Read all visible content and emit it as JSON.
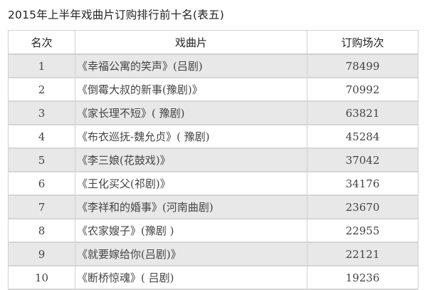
{
  "title": "2015年上半年戏曲片订购排行前十名(表五)",
  "table": {
    "headers": [
      "名次",
      "戏曲片",
      "订购场次"
    ],
    "rows": [
      {
        "rank": "1",
        "name": "《幸福公寓的笑声》(吕剧)",
        "count": "78499"
      },
      {
        "rank": "2",
        "name": "《倒霉大叔的新事(豫剧)》",
        "count": "70992"
      },
      {
        "rank": "3",
        "name": "《家长理不短》( 豫剧)",
        "count": "63821"
      },
      {
        "rank": "4",
        "name": "《布衣巡抚-魏允贞》( 豫剧)",
        "count": "45284"
      },
      {
        "rank": "5",
        "name": "《李三娘(花鼓戏)》",
        "count": "37042"
      },
      {
        "rank": "6",
        "name": "《王化买父(祁剧)》",
        "count": "34176"
      },
      {
        "rank": "7",
        "name": "《李祥和的婚事》(河南曲剧)",
        "count": "23670"
      },
      {
        "rank": "8",
        "name": "《农家嫂子》(豫剧 )",
        "count": "22955"
      },
      {
        "rank": "9",
        "name": "《就要嫁给你(吕剧)》",
        "count": "22121"
      },
      {
        "rank": "10",
        "name": "《断桥惊魂》( 吕剧)",
        "count": "19236"
      }
    ]
  }
}
